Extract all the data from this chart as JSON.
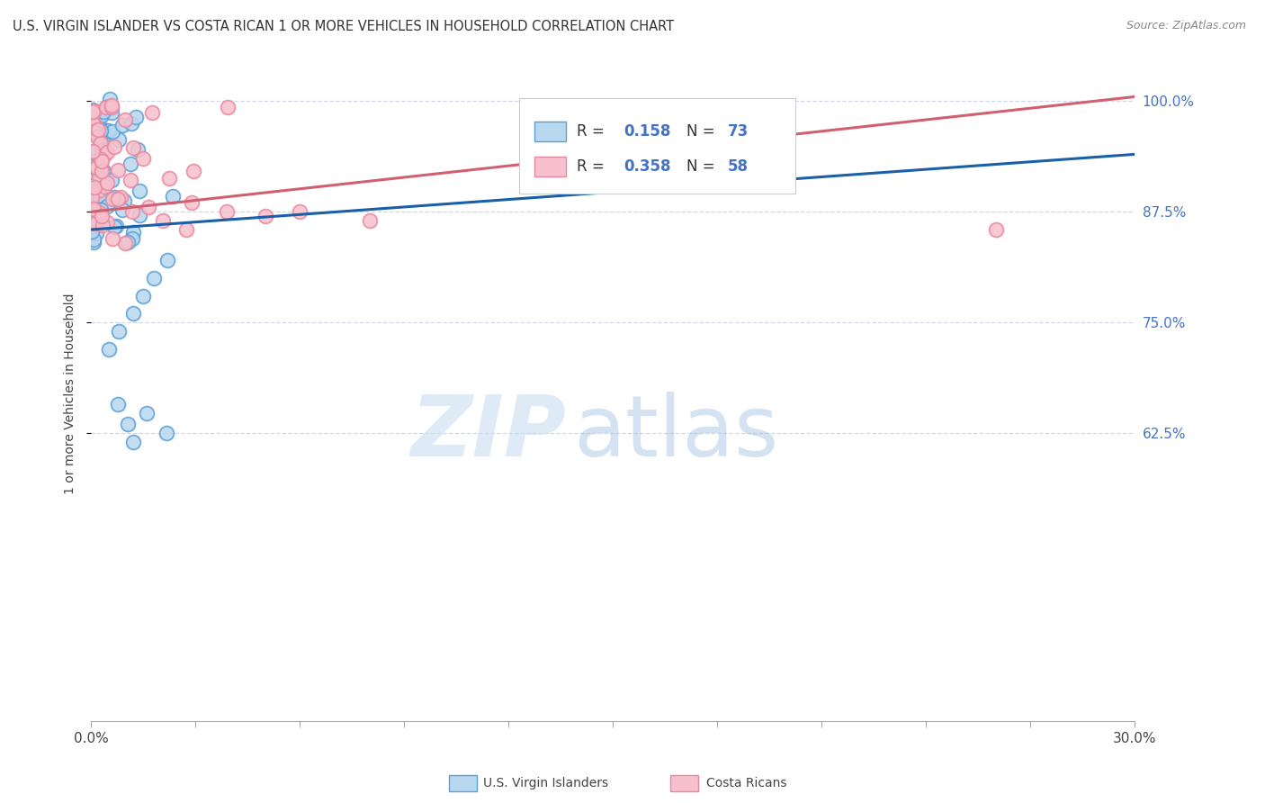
{
  "title": "U.S. VIRGIN ISLANDER VS COSTA RICAN 1 OR MORE VEHICLES IN HOUSEHOLD CORRELATION CHART",
  "source": "Source: ZipAtlas.com",
  "ylabel": "1 or more Vehicles in Household",
  "ytick_values": [
    1.0,
    0.875,
    0.75,
    0.625
  ],
  "ytick_labels": [
    "100.0%",
    "87.5%",
    "75.0%",
    "62.5%"
  ],
  "xmin": 0.0,
  "xmax": 0.3,
  "ymin": 0.3,
  "ymax": 1.04,
  "color_blue_face": "#b8d8f0",
  "color_blue_edge": "#5b9fd4",
  "color_pink_face": "#f8c0cc",
  "color_pink_edge": "#e888a0",
  "color_trendline_blue": "#1a5fa8",
  "color_trendline_pink": "#d06070",
  "label_blue": "U.S. Virgin Islanders",
  "label_pink": "Costa Ricans",
  "legend_r1_val": "0.158",
  "legend_n1_val": "73",
  "legend_r2_val": "0.358",
  "legend_n2_val": "58",
  "blue_trend_x0": 0.0,
  "blue_trend_x1": 0.3,
  "blue_trend_y0": 0.855,
  "blue_trend_y1": 0.94,
  "pink_trend_x0": 0.0,
  "pink_trend_x1": 0.3,
  "pink_trend_y0": 0.875,
  "pink_trend_y1": 1.005,
  "watermark_zip_color": "#c8dff0",
  "watermark_atlas_color": "#a0c0e0",
  "n_blue": 73,
  "n_pink": 58
}
